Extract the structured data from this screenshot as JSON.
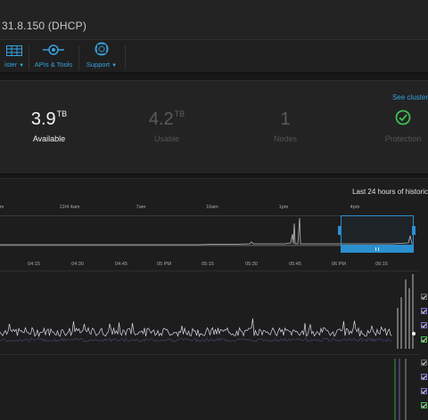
{
  "header": {
    "host": "31.8.150 (DHCP)",
    "nav": [
      {
        "label": "ister",
        "icon": "cluster-grid-icon"
      },
      {
        "label": "APIs & Tools",
        "icon": "api-tools-icon"
      },
      {
        "label": "Support",
        "icon": "support-lifebuoy-icon"
      }
    ]
  },
  "stats": {
    "see_link": "See cluster",
    "items": [
      {
        "value": "3.9",
        "unit": "TB",
        "label": "Available"
      },
      {
        "value": "4.2",
        "unit": "TB",
        "label": "Usable"
      },
      {
        "value": "1",
        "unit": "",
        "label": "Nodes"
      },
      {
        "value": "",
        "unit": "",
        "label": "Protection",
        "icon": "check-circle-icon"
      }
    ]
  },
  "history": {
    "title": "Last 24 hours of historic",
    "overview_ticks": [
      "m",
      "12/4 4am",
      "7am",
      "10am",
      "1pm",
      "4pm"
    ],
    "detail_ticks": [
      "04:15",
      "04:30",
      "04:45",
      "05 PM",
      "05:15",
      "05:30",
      "05:45",
      "06 PM",
      "06:15"
    ]
  },
  "colors": {
    "accent": "#2b8fd0",
    "link": "#36a3e0",
    "ok_green": "#3fbf4f",
    "series": "#d9d9e6",
    "series_purple": "#7c6fd8"
  }
}
